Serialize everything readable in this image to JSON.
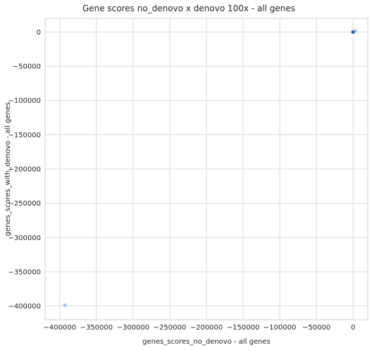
{
  "chart_data": {
    "type": "scatter",
    "title": "Gene scores no_denovo x denovo 100x - all genes",
    "xlabel": "genes_scores_no_denovo - all genes",
    "ylabel": "genes_scores_with_denovo - all genes",
    "xlim": [
      -420000,
      20000
    ],
    "ylim": [
      -420000,
      20000
    ],
    "xticks": [
      -400000,
      -350000,
      -300000,
      -250000,
      -200000,
      -150000,
      -100000,
      -50000,
      0
    ],
    "xtick_labels": [
      "−400000",
      "−350000",
      "−300000",
      "−250000",
      "−200000",
      "−150000",
      "−100000",
      "−50000",
      "0"
    ],
    "yticks": [
      0,
      -50000,
      -100000,
      -150000,
      -200000,
      -250000,
      -300000,
      -350000,
      -400000
    ],
    "ytick_labels": [
      "0",
      "−50000",
      "−100000",
      "−150000",
      "−200000",
      "−250000",
      "−300000",
      "−350000",
      "−400000"
    ],
    "grid": true,
    "colors": {
      "light_point": "#a6c8e8",
      "dark_point": "#2b6aa6"
    },
    "points": [
      {
        "x": -393000,
        "y": -399000,
        "shade": "light"
      },
      {
        "x": 2000,
        "y": 2000,
        "shade": "light"
      },
      {
        "x": 3000,
        "y": 1500,
        "shade": "light"
      },
      {
        "x": 0,
        "y": 0,
        "shade": "dark"
      }
    ]
  }
}
